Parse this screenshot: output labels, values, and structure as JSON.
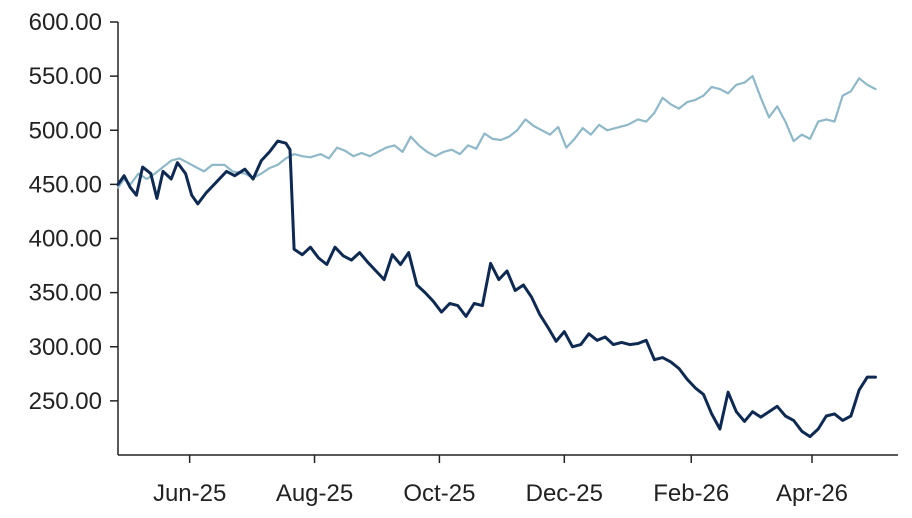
{
  "chart_data": {
    "type": "line",
    "title": "",
    "xlabel": "",
    "ylabel": "",
    "ylim": [
      200,
      600
    ],
    "xlim": [
      "2025-04-27",
      "2026-05-13"
    ],
    "y_ticks": [
      {
        "value": 250,
        "label": "250.00"
      },
      {
        "value": 300,
        "label": "300.00"
      },
      {
        "value": 350,
        "label": "350.00"
      },
      {
        "value": 400,
        "label": "400.00"
      },
      {
        "value": 450,
        "label": "450.00"
      },
      {
        "value": 500,
        "label": "500.00"
      },
      {
        "value": 550,
        "label": "550.00"
      },
      {
        "value": 600,
        "label": "600.00"
      }
    ],
    "x_ticks": [
      {
        "date": "2025-06-01",
        "label": "Jun-25"
      },
      {
        "date": "2025-08-01",
        "label": "Aug-25"
      },
      {
        "date": "2025-10-01",
        "label": "Oct-25"
      },
      {
        "date": "2025-12-01",
        "label": "Dec-25"
      },
      {
        "date": "2026-02-01",
        "label": "Feb-26"
      },
      {
        "date": "2026-04-01",
        "label": "Apr-26"
      }
    ],
    "grid": false,
    "legend": "none",
    "series": [
      {
        "color": "#8fb8c8",
        "points": [
          [
            "2025-04-27",
            447
          ],
          [
            "2025-04-30",
            455
          ],
          [
            "2025-05-03",
            450
          ],
          [
            "2025-05-07",
            460
          ],
          [
            "2025-05-11",
            455
          ],
          [
            "2025-05-15",
            460
          ],
          [
            "2025-05-19",
            466
          ],
          [
            "2025-05-23",
            472
          ],
          [
            "2025-05-27",
            474
          ],
          [
            "2025-05-31",
            470
          ],
          [
            "2025-06-04",
            466
          ],
          [
            "2025-06-08",
            462
          ],
          [
            "2025-06-12",
            468
          ],
          [
            "2025-06-18",
            468
          ],
          [
            "2025-06-22",
            462
          ],
          [
            "2025-06-28",
            460
          ],
          [
            "2025-07-02",
            456
          ],
          [
            "2025-07-06",
            460
          ],
          [
            "2025-07-10",
            465
          ],
          [
            "2025-07-14",
            468
          ],
          [
            "2025-07-18",
            474
          ],
          [
            "2025-07-22",
            478
          ],
          [
            "2025-07-26",
            476
          ],
          [
            "2025-07-30",
            475
          ],
          [
            "2025-08-04",
            478
          ],
          [
            "2025-08-08",
            474
          ],
          [
            "2025-08-12",
            484
          ],
          [
            "2025-08-16",
            481
          ],
          [
            "2025-08-20",
            476
          ],
          [
            "2025-08-24",
            479
          ],
          [
            "2025-08-28",
            476
          ],
          [
            "2025-09-01",
            480
          ],
          [
            "2025-09-05",
            484
          ],
          [
            "2025-09-09",
            486
          ],
          [
            "2025-09-13",
            480
          ],
          [
            "2025-09-17",
            494
          ],
          [
            "2025-09-21",
            486
          ],
          [
            "2025-09-25",
            480
          ],
          [
            "2025-09-29",
            476
          ],
          [
            "2025-10-03",
            480
          ],
          [
            "2025-10-07",
            482
          ],
          [
            "2025-10-11",
            478
          ],
          [
            "2025-10-15",
            486
          ],
          [
            "2025-10-19",
            483
          ],
          [
            "2025-10-23",
            497
          ],
          [
            "2025-10-27",
            492
          ],
          [
            "2025-10-31",
            491
          ],
          [
            "2025-11-04",
            494
          ],
          [
            "2025-11-08",
            500
          ],
          [
            "2025-11-12",
            510
          ],
          [
            "2025-11-16",
            504
          ],
          [
            "2025-11-20",
            500
          ],
          [
            "2025-11-24",
            496
          ],
          [
            "2025-11-28",
            503
          ],
          [
            "2025-12-02",
            484
          ],
          [
            "2025-12-06",
            492
          ],
          [
            "2025-12-10",
            502
          ],
          [
            "2025-12-14",
            496
          ],
          [
            "2025-12-18",
            505
          ],
          [
            "2025-12-22",
            500
          ],
          [
            "2025-12-26",
            502
          ],
          [
            "2026-01-01",
            505
          ],
          [
            "2026-01-06",
            510
          ],
          [
            "2026-01-10",
            508
          ],
          [
            "2026-01-14",
            516
          ],
          [
            "2026-01-18",
            530
          ],
          [
            "2026-01-22",
            524
          ],
          [
            "2026-01-26",
            520
          ],
          [
            "2026-01-30",
            526
          ],
          [
            "2026-02-03",
            528
          ],
          [
            "2026-02-07",
            532
          ],
          [
            "2026-02-11",
            540
          ],
          [
            "2026-02-15",
            538
          ],
          [
            "2026-02-19",
            534
          ],
          [
            "2026-02-23",
            542
          ],
          [
            "2026-02-27",
            544
          ],
          [
            "2026-03-03",
            550
          ],
          [
            "2026-03-07",
            530
          ],
          [
            "2026-03-11",
            512
          ],
          [
            "2026-03-15",
            522
          ],
          [
            "2026-03-19",
            508
          ],
          [
            "2026-03-23",
            490
          ],
          [
            "2026-03-27",
            496
          ],
          [
            "2026-03-31",
            492
          ],
          [
            "2026-04-04",
            508
          ],
          [
            "2026-04-08",
            510
          ],
          [
            "2026-04-12",
            508
          ],
          [
            "2026-04-16",
            532
          ],
          [
            "2026-04-20",
            536
          ],
          [
            "2026-04-24",
            548
          ],
          [
            "2026-04-28",
            542
          ],
          [
            "2026-05-02",
            538
          ]
        ]
      },
      {
        "color": "#0f2a52",
        "points": [
          [
            "2025-04-27",
            450
          ],
          [
            "2025-04-30",
            458
          ],
          [
            "2025-05-03",
            447
          ],
          [
            "2025-05-06",
            440
          ],
          [
            "2025-05-09",
            466
          ],
          [
            "2025-05-13",
            460
          ],
          [
            "2025-05-16",
            437
          ],
          [
            "2025-05-19",
            462
          ],
          [
            "2025-05-23",
            455
          ],
          [
            "2025-05-26",
            470
          ],
          [
            "2025-05-30",
            460
          ],
          [
            "2025-06-02",
            440
          ],
          [
            "2025-06-05",
            432
          ],
          [
            "2025-06-09",
            442
          ],
          [
            "2025-06-14",
            452
          ],
          [
            "2025-06-19",
            462
          ],
          [
            "2025-06-23",
            458
          ],
          [
            "2025-06-28",
            464
          ],
          [
            "2025-07-02",
            455
          ],
          [
            "2025-07-06",
            472
          ],
          [
            "2025-07-10",
            480
          ],
          [
            "2025-07-14",
            490
          ],
          [
            "2025-07-18",
            488
          ],
          [
            "2025-07-20",
            482
          ],
          [
            "2025-07-22",
            390
          ],
          [
            "2025-07-26",
            385
          ],
          [
            "2025-07-30",
            392
          ],
          [
            "2025-08-03",
            382
          ],
          [
            "2025-08-07",
            376
          ],
          [
            "2025-08-11",
            392
          ],
          [
            "2025-08-15",
            384
          ],
          [
            "2025-08-19",
            380
          ],
          [
            "2025-08-23",
            387
          ],
          [
            "2025-08-27",
            378
          ],
          [
            "2025-08-31",
            370
          ],
          [
            "2025-09-04",
            362
          ],
          [
            "2025-09-08",
            385
          ],
          [
            "2025-09-12",
            376
          ],
          [
            "2025-09-16",
            387
          ],
          [
            "2025-09-20",
            357
          ],
          [
            "2025-09-24",
            350
          ],
          [
            "2025-09-28",
            342
          ],
          [
            "2025-10-02",
            332
          ],
          [
            "2025-10-06",
            340
          ],
          [
            "2025-10-10",
            338
          ],
          [
            "2025-10-14",
            328
          ],
          [
            "2025-10-18",
            340
          ],
          [
            "2025-10-22",
            338
          ],
          [
            "2025-10-26",
            377
          ],
          [
            "2025-10-30",
            362
          ],
          [
            "2025-11-03",
            370
          ],
          [
            "2025-11-07",
            352
          ],
          [
            "2025-11-11",
            357
          ],
          [
            "2025-11-15",
            346
          ],
          [
            "2025-11-19",
            330
          ],
          [
            "2025-11-23",
            318
          ],
          [
            "2025-11-27",
            305
          ],
          [
            "2025-12-01",
            314
          ],
          [
            "2025-12-05",
            300
          ],
          [
            "2025-12-09",
            302
          ],
          [
            "2025-12-13",
            312
          ],
          [
            "2025-12-17",
            306
          ],
          [
            "2025-12-21",
            309
          ],
          [
            "2025-12-25",
            302
          ],
          [
            "2025-12-29",
            304
          ],
          [
            "2026-01-02",
            302
          ],
          [
            "2026-01-06",
            303
          ],
          [
            "2026-01-10",
            306
          ],
          [
            "2026-01-14",
            288
          ],
          [
            "2026-01-18",
            290
          ],
          [
            "2026-01-22",
            286
          ],
          [
            "2026-01-26",
            280
          ],
          [
            "2026-01-30",
            270
          ],
          [
            "2026-02-03",
            262
          ],
          [
            "2026-02-07",
            256
          ],
          [
            "2026-02-11",
            238
          ],
          [
            "2026-02-15",
            224
          ],
          [
            "2026-02-19",
            258
          ],
          [
            "2026-02-23",
            240
          ],
          [
            "2026-02-27",
            231
          ],
          [
            "2026-03-03",
            240
          ],
          [
            "2026-03-07",
            235
          ],
          [
            "2026-03-11",
            240
          ],
          [
            "2026-03-15",
            245
          ],
          [
            "2026-03-19",
            236
          ],
          [
            "2026-03-23",
            232
          ],
          [
            "2026-03-27",
            222
          ],
          [
            "2026-03-31",
            217
          ],
          [
            "2026-04-04",
            224
          ],
          [
            "2026-04-08",
            236
          ],
          [
            "2026-04-12",
            238
          ],
          [
            "2026-04-16",
            232
          ],
          [
            "2026-04-20",
            236
          ],
          [
            "2026-04-24",
            260
          ],
          [
            "2026-04-28",
            272
          ],
          [
            "2026-05-02",
            272
          ]
        ]
      }
    ]
  }
}
